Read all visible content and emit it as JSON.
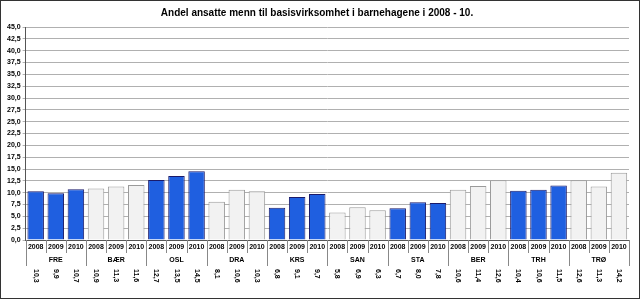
{
  "chart_data": {
    "type": "bar",
    "title": "Andel ansatte menn til basisvirksomhet i barnehagene i 2008 - 10.",
    "categories": [
      "2008",
      "2009",
      "2010",
      "2008",
      "2009",
      "2010",
      "2008",
      "2009",
      "2010",
      "2008",
      "2009",
      "2010",
      "2008",
      "2009",
      "2010",
      "2008",
      "2009",
      "2010",
      "2008",
      "2009",
      "2010",
      "2008",
      "2009",
      "2010",
      "2008",
      "2009",
      "2010",
      "2008",
      "2009",
      "2010"
    ],
    "groups": [
      "FRE",
      "BÆR",
      "OSL",
      "DRA",
      "KRS",
      "SAN",
      "STA",
      "BER",
      "TRH",
      "TRØ"
    ],
    "values": [
      10.3,
      9.9,
      10.7,
      10.9,
      11.3,
      11.6,
      12.7,
      13.5,
      14.5,
      8.1,
      10.6,
      10.3,
      6.8,
      9.1,
      9.7,
      5.8,
      6.9,
      6.3,
      6.7,
      8.0,
      7.8,
      10.6,
      11.4,
      12.6,
      10.4,
      10.6,
      11.5,
      12.6,
      11.3,
      14.2
    ],
    "value_labels": [
      "10,3",
      "9,9",
      "10,7",
      "10,9",
      "11,3",
      "11,6",
      "12,7",
      "13,5",
      "14,5",
      "8,1",
      "10,6",
      "10,3",
      "6,8",
      "9,1",
      "9,7",
      "5,8",
      "6,9",
      "6,3",
      "6,7",
      "8,0",
      "7,8",
      "10,6",
      "11,4",
      "12,6",
      "10,4",
      "10,6",
      "11,5",
      "12,6",
      "11,3",
      "14,2"
    ],
    "data_labels": true,
    "colors": [
      "#1f5fe0",
      "#1f5fe0",
      "#1f5fe0",
      "#f2f2f2",
      "#f2f2f2",
      "#f2f2f2",
      "#1f5fe0",
      "#1f5fe0",
      "#1f5fe0",
      "#f2f2f2",
      "#f2f2f2",
      "#f2f2f2",
      "#1f5fe0",
      "#1f5fe0",
      "#1f5fe0",
      "#f2f2f2",
      "#f2f2f2",
      "#f2f2f2",
      "#1f5fe0",
      "#1f5fe0",
      "#1f5fe0",
      "#f2f2f2",
      "#f2f2f2",
      "#f2f2f2",
      "#1f5fe0",
      "#1f5fe0",
      "#1f5fe0",
      "#f2f2f2",
      "#f2f2f2",
      "#f2f2f2"
    ],
    "ylim": [
      0,
      45
    ],
    "yticks": [
      {
        "value": 0,
        "label": "0,0"
      },
      {
        "value": 2.5,
        "label": "2,5"
      },
      {
        "value": 5,
        "label": "5,0"
      },
      {
        "value": 7.5,
        "label": "7,5"
      },
      {
        "value": 10,
        "label": "10,0"
      },
      {
        "value": 12.5,
        "label": "12,5"
      },
      {
        "value": 15,
        "label": "15,0"
      },
      {
        "value": 17.5,
        "label": "17,5"
      },
      {
        "value": 20,
        "label": "20,0"
      },
      {
        "value": 22.5,
        "label": "22,5"
      },
      {
        "value": 25,
        "label": "25,0"
      },
      {
        "value": 27.5,
        "label": "27,5"
      },
      {
        "value": 30,
        "label": "30,0"
      },
      {
        "value": 32.5,
        "label": "32,5"
      },
      {
        "value": 35,
        "label": "35,0"
      },
      {
        "value": 37.5,
        "label": "37,5"
      },
      {
        "value": 40,
        "label": "40,0"
      },
      {
        "value": 42.5,
        "label": "42,5"
      },
      {
        "value": 45,
        "label": "45,0"
      }
    ],
    "grid": true
  }
}
